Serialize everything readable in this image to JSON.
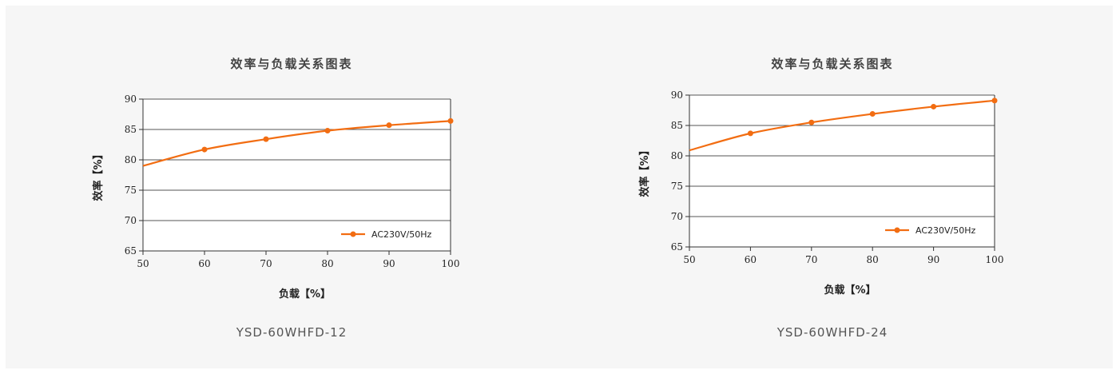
{
  "chart_data": [
    {
      "type": "line",
      "title": "效率与负载关系图表",
      "xlabel": "负载【%】",
      "ylabel": "效率【%】",
      "caption": "YSD-60WHFD-12",
      "xlim": [
        50,
        100
      ],
      "ylim": [
        65,
        90
      ],
      "x_ticks": [
        50,
        60,
        70,
        80,
        90,
        100
      ],
      "y_ticks": [
        65,
        70,
        75,
        80,
        85,
        90
      ],
      "grid": "horizontal",
      "legend_position": "bottom-right",
      "series": [
        {
          "name": "AC230V/50Hz",
          "color": "#f26d12",
          "line_start": {
            "x": 50,
            "y": 79.0
          },
          "x": [
            60,
            70,
            80,
            90,
            100
          ],
          "y": [
            81.7,
            83.4,
            84.8,
            85.7,
            86.4
          ]
        }
      ]
    },
    {
      "type": "line",
      "title": "效率与负载关系图表",
      "xlabel": "负载【%】",
      "ylabel": "效率【%】",
      "caption": "YSD-60WHFD-24",
      "xlim": [
        50,
        100
      ],
      "ylim": [
        65,
        90
      ],
      "x_ticks": [
        50,
        60,
        70,
        80,
        90,
        100
      ],
      "y_ticks": [
        65,
        70,
        75,
        80,
        85,
        90
      ],
      "grid": "horizontal",
      "legend_position": "bottom-right",
      "series": [
        {
          "name": "AC230V/50Hz",
          "color": "#f26d12",
          "line_start": {
            "x": 50,
            "y": 80.9
          },
          "x": [
            60,
            70,
            80,
            90,
            100
          ],
          "y": [
            83.7,
            85.5,
            86.9,
            88.1,
            89.1
          ]
        }
      ]
    }
  ]
}
